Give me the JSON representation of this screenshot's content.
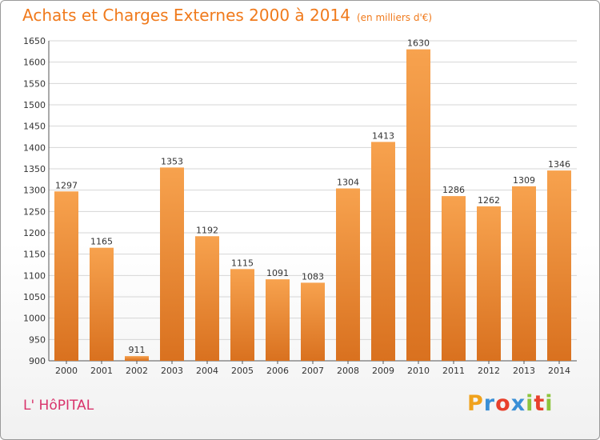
{
  "chart_data": {
    "type": "bar",
    "title": "Achats et Charges Externes 2000 à 2014",
    "subtitle": "(en milliers d'€)",
    "categories": [
      "2000",
      "2001",
      "2002",
      "2003",
      "2004",
      "2005",
      "2006",
      "2007",
      "2008",
      "2009",
      "2010",
      "2011",
      "2012",
      "2013",
      "2014"
    ],
    "values": [
      1297,
      1165,
      911,
      1353,
      1192,
      1115,
      1091,
      1083,
      1304,
      1413,
      1630,
      1286,
      1262,
      1309,
      1346
    ],
    "ylim": [
      900,
      1650
    ],
    "yticks": [
      900,
      950,
      1000,
      1050,
      1100,
      1150,
      1200,
      1250,
      1300,
      1350,
      1400,
      1450,
      1500,
      1550,
      1600,
      1650
    ],
    "grid": true,
    "bar_color": "#f28e2b"
  },
  "footer": {
    "place": "L' HôPITAL",
    "logo": [
      "P",
      "r",
      "o",
      "x",
      "i",
      "t",
      "i"
    ],
    "logo_colors": [
      "#f0a21c",
      "#3a8fd6",
      "#e8402b",
      "#3a8fd6",
      "#8cc43c",
      "#e8402b",
      "#8cc43c"
    ]
  }
}
